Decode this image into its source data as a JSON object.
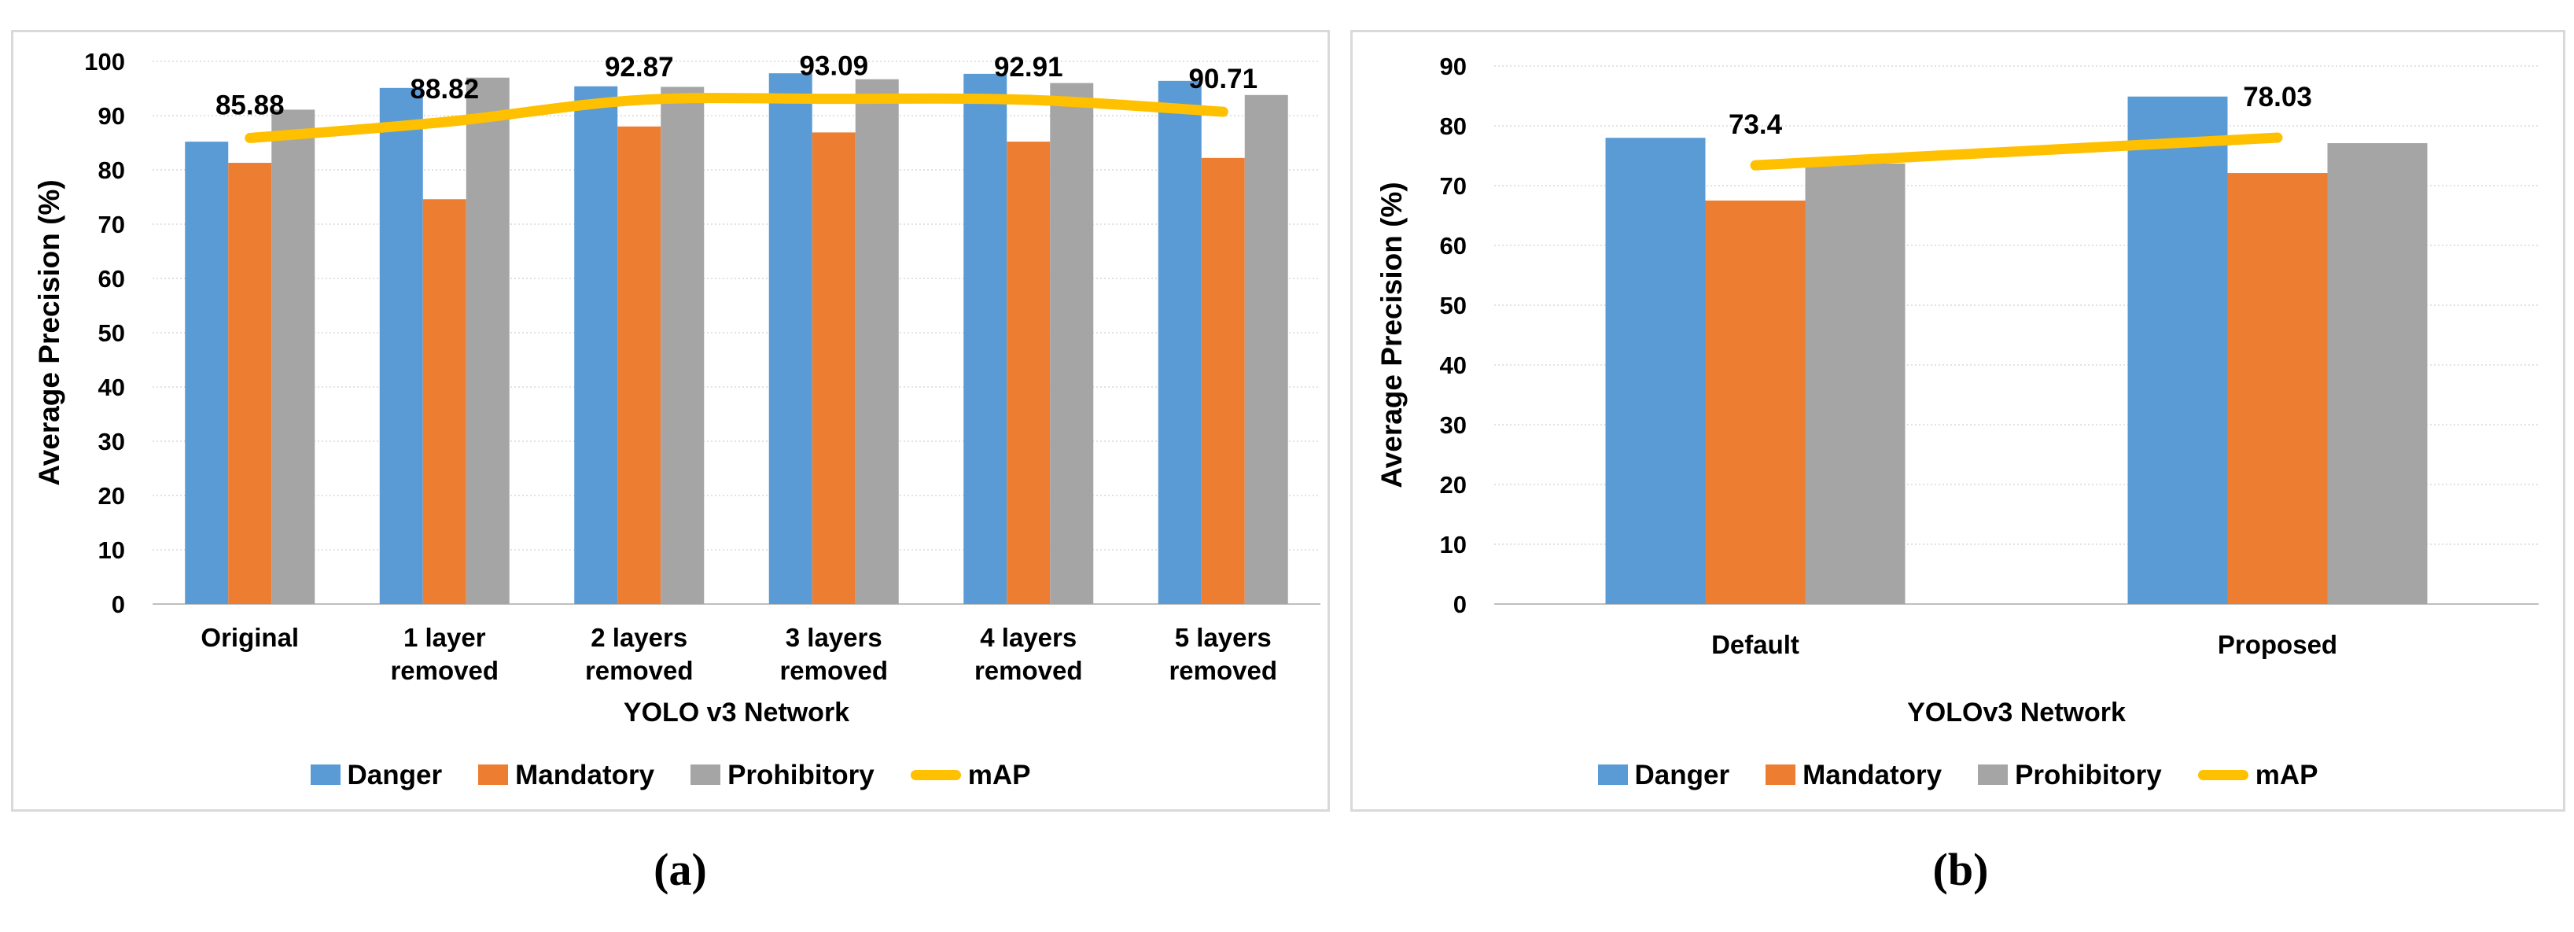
{
  "figure": {
    "captions": {
      "a": "(a)",
      "b": "(b)"
    }
  },
  "colors": {
    "danger": "#5B9BD5",
    "mandatory": "#ED7D31",
    "prohibitory": "#A5A5A5",
    "map": "#FFC000",
    "grid": "#D9D9D9",
    "axis": "#BFBFBF",
    "text": "#000000",
    "panel_border": "#D9D9D9"
  },
  "chart_data": [
    {
      "id": "a",
      "type": "bar",
      "title": "",
      "ylabel": "Average Precision (%)",
      "xlabel": "YOLO v3 Network",
      "ylim": [
        0,
        100
      ],
      "ytick_step": 10,
      "yticks": [
        "0",
        "10",
        "20",
        "30",
        "40",
        "50",
        "60",
        "70",
        "80",
        "90",
        "100"
      ],
      "grid": true,
      "legend_position": "bottom",
      "categories": [
        [
          "Original"
        ],
        [
          "1 layer",
          "removed"
        ],
        [
          "2 layers",
          "removed"
        ],
        [
          "3 layers",
          "removed"
        ],
        [
          "4 layers",
          "removed"
        ],
        [
          "5 layers",
          "removed"
        ]
      ],
      "series": [
        {
          "name": "Danger",
          "color": "#5B9BD5",
          "values": [
            85.2,
            95.1,
            95.4,
            97.8,
            97.7,
            96.4
          ]
        },
        {
          "name": "Mandatory",
          "color": "#ED7D31",
          "values": [
            81.3,
            74.6,
            88.0,
            86.9,
            85.2,
            82.2
          ]
        },
        {
          "name": "Prohibitory",
          "color": "#A5A5A5",
          "values": [
            91.1,
            97.0,
            95.3,
            96.7,
            96.0,
            93.8
          ]
        }
      ],
      "line_series": {
        "name": "mAP",
        "color": "#FFC000",
        "smooth": true,
        "values": [
          85.88,
          88.82,
          92.87,
          93.09,
          92.91,
          90.71
        ],
        "data_labels": [
          "85.88",
          "88.82",
          "92.87",
          "93.09",
          "92.91",
          "90.71"
        ]
      }
    },
    {
      "id": "b",
      "type": "bar",
      "title": "",
      "ylabel": "Average Precision (%)",
      "xlabel": "YOLOv3 Network",
      "ylim": [
        0,
        90
      ],
      "ytick_step": 10,
      "yticks": [
        "0",
        "10",
        "20",
        "30",
        "40",
        "50",
        "60",
        "70",
        "80",
        "90"
      ],
      "grid": true,
      "legend_position": "bottom",
      "categories": [
        [
          "Default"
        ],
        [
          "Proposed"
        ]
      ],
      "series": [
        {
          "name": "Danger",
          "color": "#5B9BD5",
          "values": [
            78.0,
            84.9
          ]
        },
        {
          "name": "Mandatory",
          "color": "#ED7D31",
          "values": [
            67.5,
            72.1
          ]
        },
        {
          "name": "Prohibitory",
          "color": "#A5A5A5",
          "values": [
            73.7,
            77.1
          ]
        }
      ],
      "line_series": {
        "name": "mAP",
        "color": "#FFC000",
        "smooth": false,
        "values": [
          73.4,
          78.03
        ],
        "data_labels": [
          "73.4",
          "78.03"
        ]
      }
    }
  ]
}
